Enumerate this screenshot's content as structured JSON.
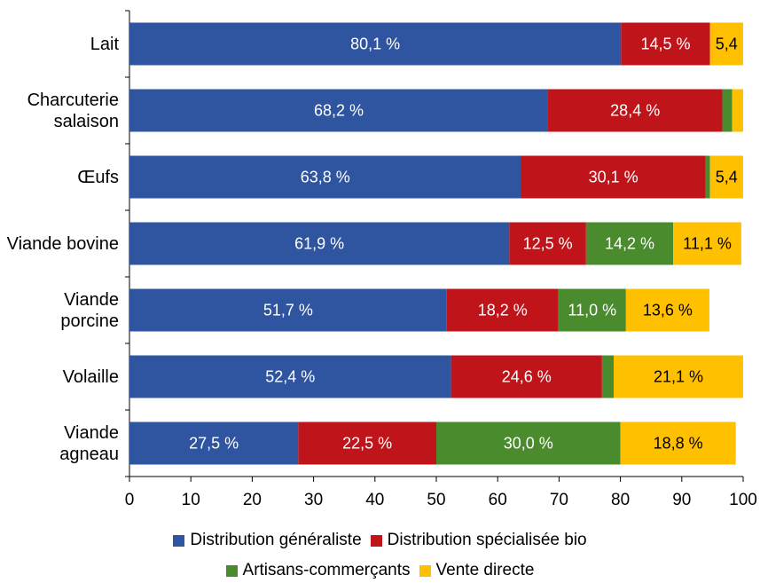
{
  "chart_data": {
    "type": "stacked-barh",
    "categories": [
      "Lait",
      "Charcuterie salaison",
      "Œufs",
      "Viande bovine",
      "Viande porcine",
      "Volaille",
      "Viande agneau"
    ],
    "series": [
      {
        "name": "Distribution généraliste",
        "color": "#2f54a0",
        "values": [
          80.1,
          68.2,
          63.8,
          61.9,
          51.7,
          52.4,
          27.5
        ],
        "value_labels": [
          "80,1 %",
          "68,2 %",
          "63,8 %",
          "61,9 %",
          "51,7 %",
          "52,4 %",
          "27,5 %"
        ]
      },
      {
        "name": "Distribution spécialisée bio",
        "color": "#c0141b",
        "values": [
          14.5,
          28.4,
          30.1,
          12.5,
          18.2,
          24.6,
          22.5
        ],
        "value_labels": [
          "14,5 %",
          "28,4 %",
          "30,1 %",
          "12,5 %",
          "18,2 %",
          "24,6 %",
          "22,5 %"
        ]
      },
      {
        "name": "Artisans-commerçants",
        "color": "#4a8b2e",
        "values": [
          0,
          1.6,
          0.7,
          14.2,
          11.0,
          1.9,
          30.0
        ],
        "value_labels": [
          null,
          null,
          null,
          "14,2 %",
          "11,0 %",
          null,
          "30,0 %"
        ]
      },
      {
        "name": "Vente directe",
        "color": "#ffc000",
        "values": [
          5.4,
          1.8,
          5.4,
          11.1,
          13.6,
          21.1,
          18.8
        ],
        "value_labels": [
          "5,4",
          null,
          "5,4",
          "11,1 %",
          "13,6 %",
          "21,1 %",
          "18,8 %"
        ]
      }
    ],
    "xlim": [
      0,
      100
    ],
    "xticks": [
      0,
      10,
      20,
      30,
      40,
      50,
      60,
      70,
      80,
      90,
      100
    ]
  }
}
